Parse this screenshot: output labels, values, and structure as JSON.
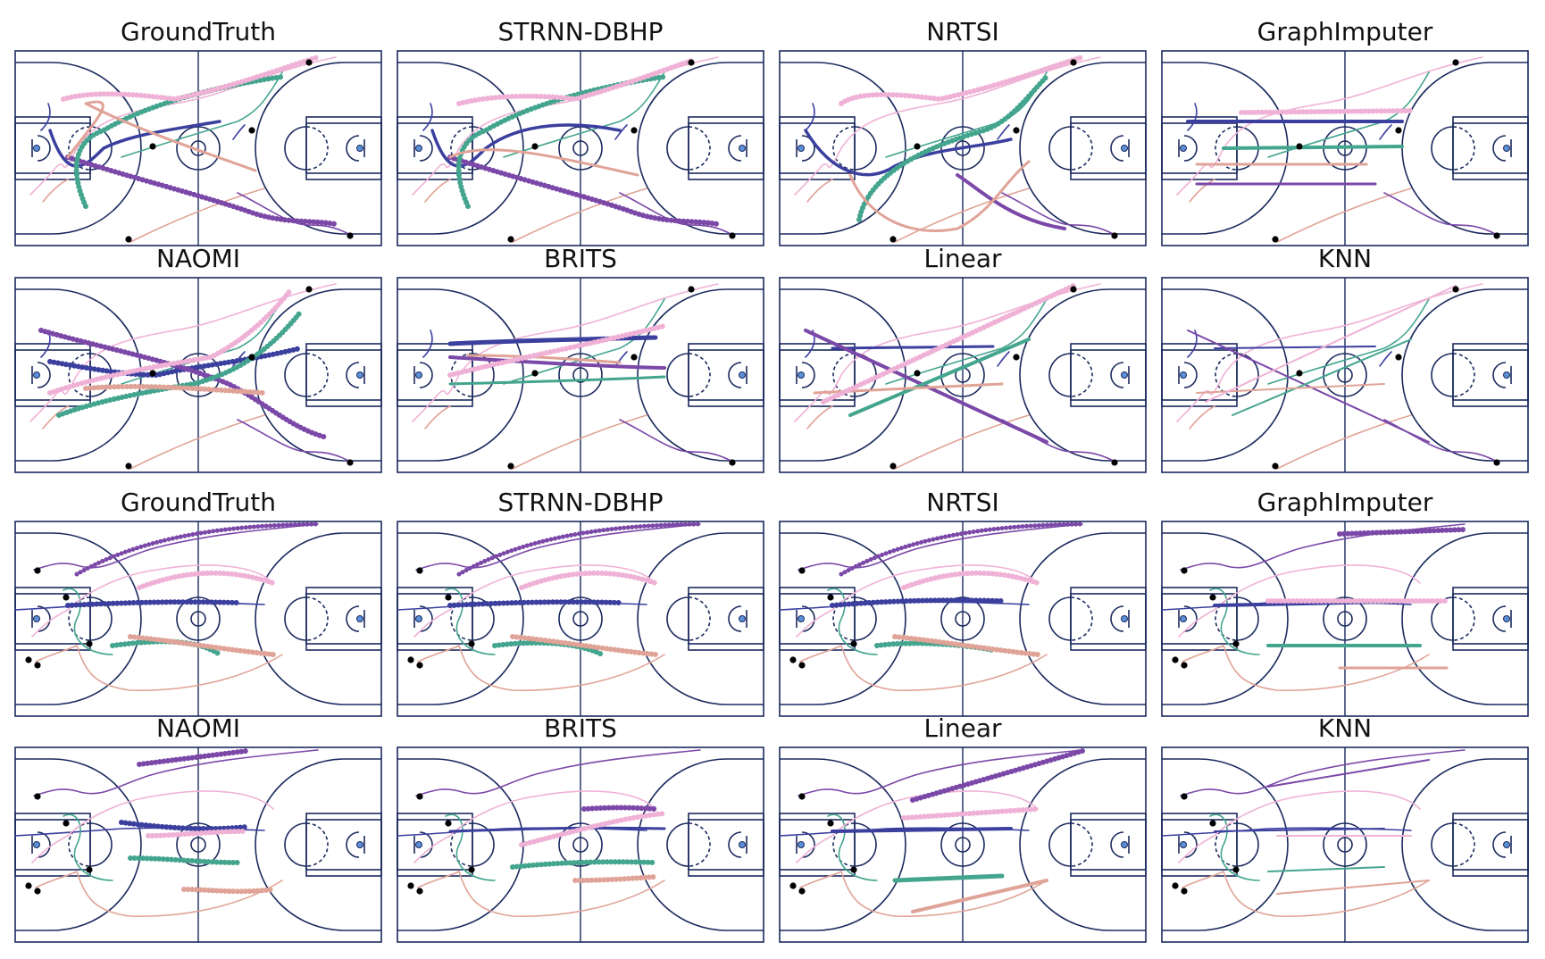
{
  "colors": {
    "court_line": "#1b2a5e",
    "rim": "#5b8fd6",
    "navy": "#3b3f9e",
    "purple": "#7b48a8",
    "teal": "#44a58e",
    "pink": "#efb2d6",
    "salmon": "#e0a397",
    "dot": "#000000"
  },
  "panels": [
    {
      "title": "GroundTruth"
    },
    {
      "title": "STRNN-DBHP"
    },
    {
      "title": "NRTSI"
    },
    {
      "title": "GraphImputer"
    },
    {
      "title": "NAOMI"
    },
    {
      "title": "BRITS"
    },
    {
      "title": "Linear"
    },
    {
      "title": "KNN"
    },
    {
      "title": "GroundTruth"
    },
    {
      "title": "STRNN-DBHP"
    },
    {
      "title": "NRTSI"
    },
    {
      "title": "GraphImputer"
    },
    {
      "title": "NAOMI"
    },
    {
      "title": "BRITS"
    },
    {
      "title": "Linear"
    },
    {
      "title": "KNN"
    }
  ]
}
